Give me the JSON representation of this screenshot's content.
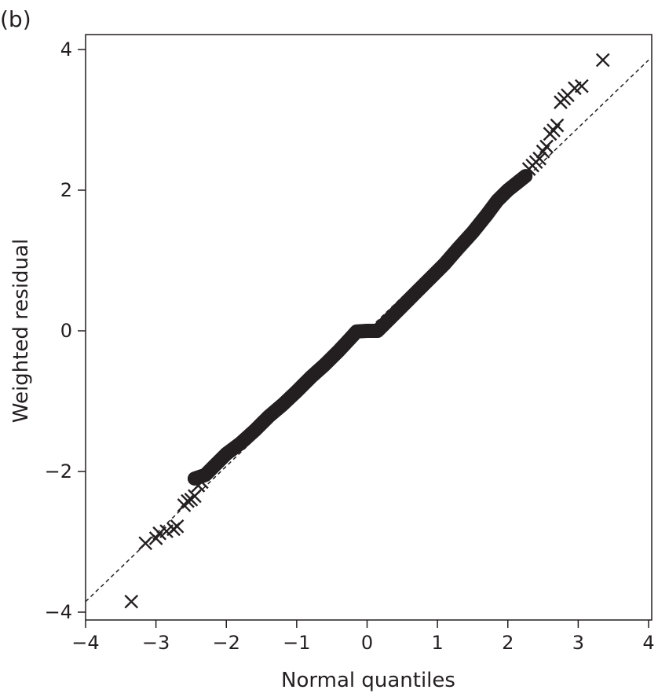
{
  "panel_label": "(b)",
  "chart_data": {
    "type": "scatter",
    "title": "",
    "xlabel": "Normal quantiles",
    "ylabel": "Weighted residual",
    "xlim": [
      -4,
      4
    ],
    "ylim": [
      -4,
      4
    ],
    "xticks": [
      -4,
      -3,
      -2,
      -1,
      0,
      1,
      2,
      3,
      4
    ],
    "yticks": [
      -4,
      -2,
      0,
      2,
      4
    ],
    "x_tick_labels": [
      "−4",
      "−3",
      "−2",
      "−1",
      "0",
      "1",
      "2",
      "3",
      "4"
    ],
    "y_tick_labels": [
      "−4",
      "−2",
      "0",
      "2",
      "4"
    ],
    "grid": false,
    "legend": "none",
    "marker": "x",
    "marker_color": "#231f20",
    "reference_line": {
      "style": "dashed",
      "from": [
        -4,
        -3.85
      ],
      "to": [
        4,
        3.85
      ],
      "color": "#231f20"
    },
    "dense_band": {
      "description_x_range": [
        -2.45,
        2.25
      ],
      "points": [
        [
          -2.45,
          -2.1
        ],
        [
          -2.3,
          -2.05
        ],
        [
          -2.15,
          -1.9
        ],
        [
          -2.0,
          -1.75
        ],
        [
          -1.8,
          -1.6
        ],
        [
          -1.6,
          -1.42
        ],
        [
          -1.4,
          -1.22
        ],
        [
          -1.2,
          -1.05
        ],
        [
          -1.0,
          -0.86
        ],
        [
          -0.8,
          -0.66
        ],
        [
          -0.6,
          -0.48
        ],
        [
          -0.4,
          -0.28
        ],
        [
          -0.25,
          -0.12
        ],
        [
          -0.15,
          -0.01
        ],
        [
          0.0,
          0.0
        ],
        [
          0.15,
          0.0
        ],
        [
          0.3,
          0.15
        ],
        [
          0.5,
          0.35
        ],
        [
          0.7,
          0.55
        ],
        [
          0.9,
          0.75
        ],
        [
          1.1,
          0.95
        ],
        [
          1.3,
          1.18
        ],
        [
          1.5,
          1.4
        ],
        [
          1.7,
          1.65
        ],
        [
          1.85,
          1.85
        ],
        [
          2.0,
          2.0
        ],
        [
          2.15,
          2.12
        ],
        [
          2.25,
          2.2
        ]
      ]
    },
    "points": [
      {
        "x": -3.35,
        "y": -3.85
      },
      {
        "x": -3.15,
        "y": -3.02
      },
      {
        "x": -3.0,
        "y": -2.95
      },
      {
        "x": -2.95,
        "y": -2.88
      },
      {
        "x": -2.85,
        "y": -2.85
      },
      {
        "x": -2.75,
        "y": -2.82
      },
      {
        "x": -2.7,
        "y": -2.78
      },
      {
        "x": -2.6,
        "y": -2.48
      },
      {
        "x": -2.55,
        "y": -2.42
      },
      {
        "x": -2.5,
        "y": -2.4
      },
      {
        "x": -2.45,
        "y": -2.35
      },
      {
        "x": -2.4,
        "y": -2.2
      },
      {
        "x": -2.35,
        "y": -2.15
      },
      {
        "x": 2.3,
        "y": 2.3
      },
      {
        "x": 2.35,
        "y": 2.35
      },
      {
        "x": 2.4,
        "y": 2.4
      },
      {
        "x": 2.45,
        "y": 2.45
      },
      {
        "x": 2.5,
        "y": 2.55
      },
      {
        "x": 2.55,
        "y": 2.62
      },
      {
        "x": 2.6,
        "y": 2.8
      },
      {
        "x": 2.65,
        "y": 2.85
      },
      {
        "x": 2.7,
        "y": 2.92
      },
      {
        "x": 2.75,
        "y": 3.25
      },
      {
        "x": 2.8,
        "y": 3.3
      },
      {
        "x": 2.85,
        "y": 3.35
      },
      {
        "x": 2.95,
        "y": 3.45
      },
      {
        "x": 3.05,
        "y": 3.48
      },
      {
        "x": 3.35,
        "y": 3.85
      }
    ]
  }
}
